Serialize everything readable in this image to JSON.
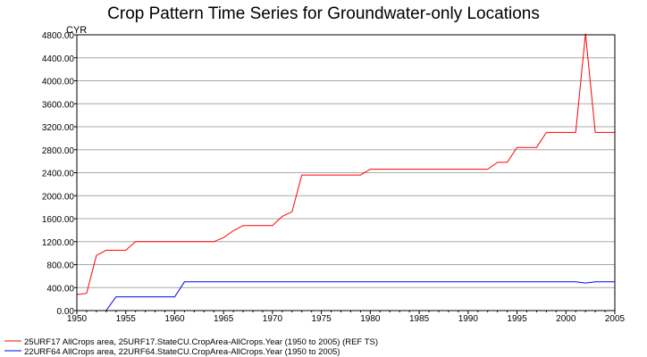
{
  "chart_data": {
    "type": "line",
    "title": "Crop Pattern Time Series for Groundwater-only Locations",
    "ylabel": "CYR",
    "xlabel": "",
    "xlim": [
      1950,
      2005
    ],
    "ylim": [
      0,
      4800
    ],
    "grid": true,
    "legend_position": "bottom-left",
    "yticks": [
      "0.00",
      "400.00",
      "800.00",
      "1200.00",
      "1600.00",
      "2000.00",
      "2400.00",
      "2800.00",
      "3200.00",
      "3600.00",
      "4000.00",
      "4400.00",
      "4800.00"
    ],
    "xticks": [
      "1950",
      "1955",
      "1960",
      "1965",
      "1970",
      "1975",
      "1980",
      "1985",
      "1990",
      "1995",
      "2000",
      "2005"
    ],
    "series": [
      {
        "name": "25URF17 AllCrops area, 25URF17.StateCU.CropArea-AllCrops.Year (1950 to 2005) (REF TS)",
        "color": "#ff0000",
        "x": [
          1950,
          1951,
          1952,
          1953,
          1954,
          1955,
          1956,
          1957,
          1958,
          1959,
          1960,
          1961,
          1962,
          1963,
          1964,
          1965,
          1966,
          1967,
          1968,
          1969,
          1970,
          1971,
          1972,
          1973,
          1974,
          1975,
          1976,
          1977,
          1978,
          1979,
          1980,
          1981,
          1982,
          1983,
          1984,
          1985,
          1986,
          1987,
          1988,
          1989,
          1990,
          1991,
          1992,
          1993,
          1994,
          1995,
          1996,
          1997,
          1998,
          1999,
          2000,
          2001,
          2002,
          2003,
          2004,
          2005
        ],
        "y": [
          280,
          300,
          960,
          1050,
          1050,
          1050,
          1200,
          1200,
          1200,
          1200,
          1200,
          1200,
          1200,
          1200,
          1200,
          1270,
          1390,
          1480,
          1480,
          1480,
          1480,
          1640,
          1720,
          2360,
          2360,
          2360,
          2360,
          2360,
          2360,
          2360,
          2460,
          2460,
          2460,
          2460,
          2460,
          2460,
          2460,
          2460,
          2460,
          2460,
          2460,
          2460,
          2460,
          2580,
          2580,
          2840,
          2840,
          2840,
          3100,
          3100,
          3100,
          3100,
          4820,
          3100,
          3100,
          3100
        ]
      },
      {
        "name": "22URF64 AllCrops area, 22URF64.StateCU.CropArea-AllCrops.Year (1950 to 2005)",
        "color": "#0000ff",
        "x": [
          1953,
          1954,
          1955,
          1956,
          1957,
          1958,
          1959,
          1960,
          1961,
          1962,
          1963,
          1964,
          1965,
          1966,
          1967,
          1968,
          1969,
          1970,
          1971,
          1972,
          1973,
          1974,
          1975,
          1976,
          1977,
          1978,
          1979,
          1980,
          1981,
          1982,
          1983,
          1984,
          1985,
          1986,
          1987,
          1988,
          1989,
          1990,
          1991,
          1992,
          1993,
          1994,
          1995,
          1996,
          1997,
          1998,
          1999,
          2000,
          2001,
          2002,
          2003,
          2004,
          2005
        ],
        "y": [
          0,
          240,
          240,
          240,
          240,
          240,
          240,
          240,
          500,
          500,
          500,
          500,
          500,
          500,
          500,
          500,
          500,
          500,
          500,
          500,
          500,
          500,
          500,
          500,
          500,
          500,
          500,
          500,
          500,
          500,
          500,
          500,
          500,
          500,
          500,
          500,
          500,
          500,
          500,
          500,
          500,
          500,
          500,
          500,
          500,
          500,
          500,
          500,
          500,
          480,
          500,
          500,
          500
        ]
      }
    ]
  }
}
